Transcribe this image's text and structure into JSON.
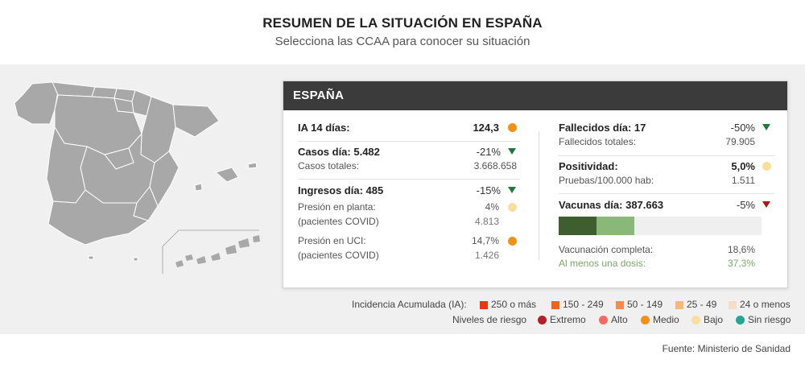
{
  "header": {
    "title": "RESUMEN DE LA SITUACIÓN EN ESPAÑA",
    "subtitle": "Selecciona las CCAA para conocer su situación"
  },
  "card": {
    "title": "ESPAÑA",
    "left": {
      "ia": {
        "label": "IA 14 días:",
        "value": "124,3",
        "risk_color": "#f39016"
      },
      "casos": {
        "label": "Casos día: 5.482",
        "change": "-21%",
        "trend": "down-green",
        "sub_label": "Casos totales:",
        "sub_value": "3.668.658"
      },
      "ingresos": {
        "label": "Ingresos día: 485",
        "change": "-15%",
        "trend": "down-green"
      },
      "planta": {
        "label_line1": "Presión en planta:",
        "label_line2": "(pacientes COVID)",
        "value": "4%",
        "sub_value": "4.813",
        "risk_color": "#f8df9e"
      },
      "uci": {
        "label_line1": "Presión en UCI:",
        "label_line2": "(pacientes COVID)",
        "value": "14,7%",
        "sub_value": "1.426",
        "risk_color": "#f39016"
      }
    },
    "right": {
      "fallecidos": {
        "label": "Fallecidos día: 17",
        "change": "-50%",
        "trend": "down-green",
        "sub_label": "Fallecidos totales:",
        "sub_value": "79.905"
      },
      "positividad": {
        "label": "Positividad:",
        "value": "5,0%",
        "risk_color": "#f8df9e",
        "sub_label": "Pruebas/100.000 hab:",
        "sub_value": "1.511"
      },
      "vacunas": {
        "label": "Vacunas día: 387.663",
        "change": "-5%",
        "trend": "down-red",
        "completa_label": "Vacunación completa:",
        "completa_value": "18,6%",
        "completa_fraction": 0.186,
        "dosis_label": "Al menos una dosis:",
        "dosis_value": "37,3%",
        "dosis_fraction": 0.373,
        "colors": {
          "completa": "#3f5e2f",
          "dosis": "#8ab77a",
          "track": "#efefef"
        }
      }
    }
  },
  "legend_ia": {
    "label": "Incidencia Acumulada (IA):",
    "items": [
      {
        "text": "250 o más",
        "color": "#e8390e"
      },
      {
        "text": "150 - 249",
        "color": "#f2611a"
      },
      {
        "text": "50 - 149",
        "color": "#f58a4b"
      },
      {
        "text": "25 - 49",
        "color": "#f7b877"
      },
      {
        "text": "24 o menos",
        "color": "#f6dec6"
      }
    ]
  },
  "legend_riesgo": {
    "label": "Niveles de riesgo",
    "items": [
      {
        "text": "Extremo",
        "color": "#b3202a"
      },
      {
        "text": "Alto",
        "color": "#f26a62"
      },
      {
        "text": "Medio",
        "color": "#f39016"
      },
      {
        "text": "Bajo",
        "color": "#f8df9e"
      },
      {
        "text": "Sin riesgo",
        "color": "#22a699"
      }
    ]
  },
  "source": "Fuente: Ministerio de Sanidad"
}
